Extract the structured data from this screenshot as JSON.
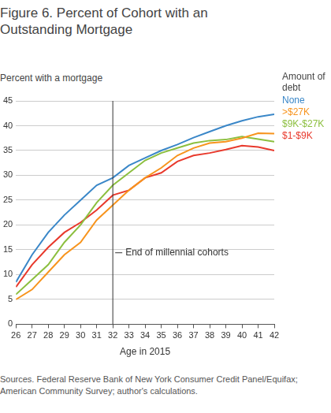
{
  "chart_data": {
    "type": "line",
    "title": "Figure 6. Percent of Cohort with an Outstanding Mortgage",
    "y_label": "Percent with a mortgage",
    "x_label": "Age in 2015",
    "legend_title": "Amount of debt",
    "source": "Sources. Federal Reserve Bank of New York Consumer Credit Panel/Equifax; American Community Survey; author's calculations.",
    "x": [
      26,
      27,
      28,
      29,
      30,
      31,
      32,
      33,
      34,
      35,
      36,
      37,
      38,
      39,
      40,
      41,
      42
    ],
    "series": [
      {
        "name": "None",
        "color": "#3a87c8",
        "values": [
          8.5,
          14,
          18.5,
          22,
          25,
          28,
          29.5,
          32,
          33.5,
          35,
          36.2,
          37.6,
          38.8,
          40,
          41,
          41.8,
          42.3
        ]
      },
      {
        "name": ">$27K",
        "color": "#f7941d",
        "values": [
          5,
          7,
          10.5,
          14,
          16.5,
          21,
          24,
          27,
          29.5,
          31.5,
          34,
          35.5,
          36.5,
          36.8,
          37.5,
          38.5,
          38.4
        ]
      },
      {
        "name": "$9K-$27K",
        "color": "#8cbf3f",
        "values": [
          6,
          9,
          12,
          16.5,
          20,
          24.5,
          28,
          30.5,
          33,
          34.5,
          35.5,
          36.5,
          37,
          37.2,
          37.8,
          37.3,
          36.8
        ]
      },
      {
        "name": "$1-$9K",
        "color": "#e8392c",
        "values": [
          7.5,
          12,
          15.5,
          18.5,
          20.5,
          23,
          26,
          27,
          29.5,
          30.5,
          32.8,
          34,
          34.5,
          35.2,
          36,
          35.7,
          35
        ]
      }
    ],
    "xlim": [
      26,
      42
    ],
    "xticks": [
      26,
      27,
      28,
      29,
      30,
      31,
      32,
      33,
      34,
      35,
      36,
      37,
      38,
      39,
      40,
      41,
      42
    ],
    "ylim": [
      0,
      45
    ],
    "yticks": [
      0,
      5,
      10,
      15,
      20,
      25,
      30,
      35,
      40,
      45
    ],
    "grid": true,
    "legend": "right",
    "annotations": [
      {
        "x": 32,
        "text": "End of millennial cohorts"
      }
    ]
  }
}
